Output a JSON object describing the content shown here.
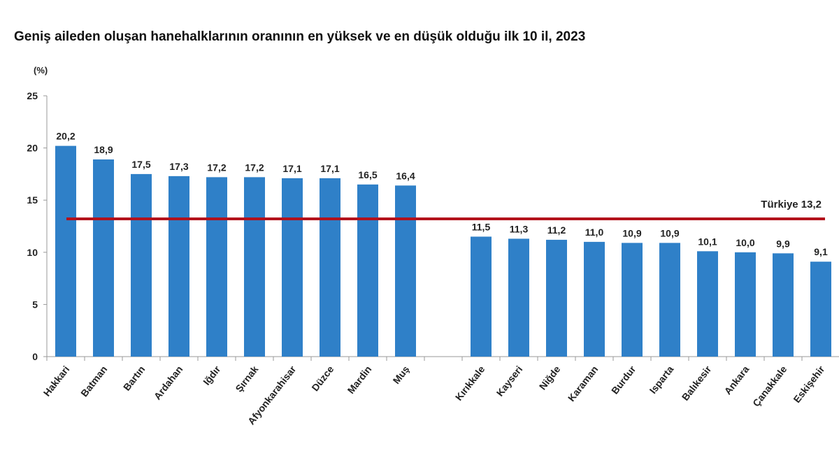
{
  "chart_data": {
    "type": "bar",
    "title": "Geniş aileden oluşan hanehalklarının oranının en yüksek ve en düşük olduğu ilk 10 il, 2023",
    "ylabel": "(%)",
    "xlabel": "",
    "ylim": [
      0,
      25
    ],
    "yticks": [
      0,
      5,
      10,
      15,
      20,
      25
    ],
    "grid": false,
    "bar_color": "#2f80c8",
    "categories": [
      "Hakkari",
      "Batman",
      "Bartın",
      "Ardahan",
      "Iğdır",
      "Şırnak",
      "Afyonkarahisar",
      "Düzce",
      "Mardin",
      "Muş",
      "",
      "Kırıkkale",
      "Kayseri",
      "Niğde",
      "Karaman",
      "Burdur",
      "Isparta",
      "Balıkesir",
      "Ankara",
      "Çanakkale",
      "Eskişehir"
    ],
    "values": [
      20.2,
      18.9,
      17.5,
      17.3,
      17.2,
      17.2,
      17.1,
      17.1,
      16.5,
      16.4,
      null,
      11.5,
      11.3,
      11.2,
      11.0,
      10.9,
      10.9,
      10.1,
      10.0,
      9.9,
      9.1
    ],
    "data_labels": [
      "20,2",
      "18,9",
      "17,5",
      "17,3",
      "17,2",
      "17,2",
      "17,1",
      "17,1",
      "16,5",
      "16,4",
      "",
      "11,5",
      "11,3",
      "11,2",
      "11,0",
      "10,9",
      "10,9",
      "10,1",
      "10,0",
      "9,9",
      "9,1"
    ],
    "reference_line": {
      "label": "Türkiye 13,2",
      "value": 13.2,
      "color": "#b3121c"
    }
  }
}
